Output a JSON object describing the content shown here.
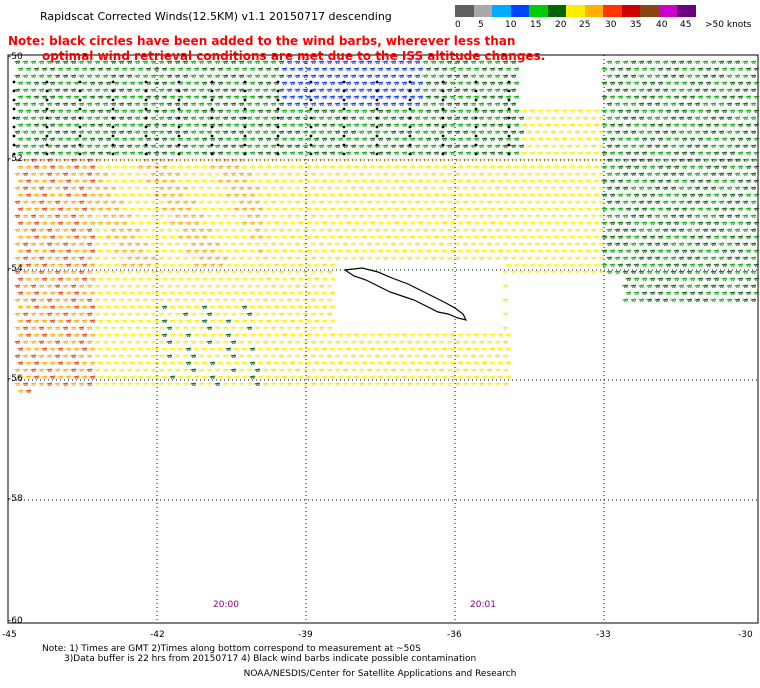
{
  "title": "Rapidscat Corrected Winds(12.5KM) v1.1 20150717 descending",
  "wind_scale": {
    "units": "knots",
    "colors": [
      "#606060",
      "#a8a8a8",
      "#00aaff",
      "#0044ff",
      "#00cc00",
      "#006600",
      "#ffee00",
      "#ffb000",
      "#ff3300",
      "#cc0000",
      "#8b4513",
      "#cc00cc",
      "#6a0080"
    ],
    "labels": [
      "0",
      "5",
      "10",
      "15",
      "20",
      "25",
      "30",
      "35",
      "40",
      "45",
      ">50 knots"
    ]
  },
  "note_line1": "Note: black circles have been added to the wind barbs, wherever less than",
  "note_line2": "optimal wind retrieval conditions are met due to the ISS altitude changes.",
  "map": {
    "lat_labels": [
      "-50",
      "-52",
      "-54",
      "-56",
      "-58",
      "-60"
    ],
    "lon_labels": [
      "-45",
      "-42",
      "-39",
      "-36",
      "-33",
      "-30"
    ],
    "time_labels": [
      "20:00",
      "20:01"
    ],
    "land": "South Georgia island"
  },
  "footnote_line1": "Note: 1) Times are GMT 2)Times along bottom correspond to measurement at ~50S",
  "footnote_line2": "3)Data buffer is 22 hrs from 20150717 4) Black wind barbs indicate possible contamination",
  "credit": "NOAA/NESDIS/Center for Satellite Applications and Research"
}
